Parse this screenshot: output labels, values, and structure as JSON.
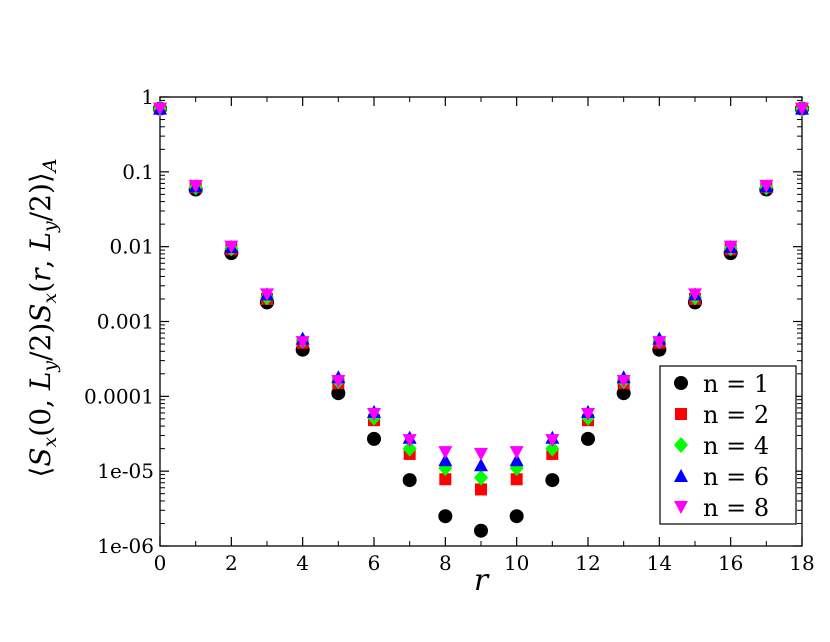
{
  "chart_data": {
    "type": "scatter",
    "title": "",
    "xlabel": "r",
    "ylabel": "⟨Sx(0,Ly/2)Sx(r,Ly/2)⟩A",
    "xlim": [
      0,
      18
    ],
    "ylim": [
      1e-06,
      1
    ],
    "yscale": "log",
    "x_ticks": [
      0,
      2,
      4,
      6,
      8,
      10,
      12,
      14,
      16,
      18
    ],
    "y_ticks": [
      {
        "value": 1,
        "label": "1"
      },
      {
        "value": 0.1,
        "label": "0.1"
      },
      {
        "value": 0.01,
        "label": "0.01"
      },
      {
        "value": 0.001,
        "label": "0.001"
      },
      {
        "value": 0.0001,
        "label": "0.0001"
      },
      {
        "value": 1e-05,
        "label": "1e-05"
      },
      {
        "value": 1e-06,
        "label": "1e-06"
      }
    ],
    "grid": false,
    "legend": {
      "position": "bottom-right"
    },
    "x": [
      0,
      1,
      2,
      3,
      4,
      5,
      6,
      7,
      8,
      9,
      10,
      11,
      12,
      13,
      14,
      15,
      16,
      17,
      18
    ],
    "series": [
      {
        "name": "n = 1",
        "marker": "circle",
        "color": "#000000",
        "values": [
          0.7,
          0.058,
          0.0082,
          0.0018,
          0.00042,
          0.00011,
          2.7e-05,
          7.6e-06,
          2.5e-06,
          1.6e-06,
          2.5e-06,
          7.6e-06,
          2.7e-05,
          0.00011,
          0.00042,
          0.0018,
          0.0082,
          0.058,
          0.7
        ]
      },
      {
        "name": "n = 2",
        "marker": "square",
        "color": "#ff0000",
        "values": [
          0.7,
          0.062,
          0.0092,
          0.002,
          0.00052,
          0.00015,
          4.8e-05,
          1.7e-05,
          7.8e-06,
          5.7e-06,
          7.8e-06,
          1.7e-05,
          4.8e-05,
          0.00015,
          0.00052,
          0.002,
          0.0092,
          0.062,
          0.7
        ]
      },
      {
        "name": "n = 4",
        "marker": "diamond",
        "color": "#00ff00",
        "values": [
          0.7,
          0.062,
          0.0095,
          0.0021,
          0.00055,
          0.00016,
          5.2e-05,
          2e-05,
          1.1e-05,
          8.2e-06,
          1.1e-05,
          2e-05,
          5.2e-05,
          0.00016,
          0.00055,
          0.0021,
          0.0095,
          0.062,
          0.7
        ]
      },
      {
        "name": "n = 6",
        "marker": "triangle-up",
        "color": "#0000ff",
        "values": [
          0.7,
          0.064,
          0.0099,
          0.0023,
          0.00059,
          0.00018,
          6.2e-05,
          2.8e-05,
          1.4e-05,
          1.2e-05,
          1.4e-05,
          2.8e-05,
          6.2e-05,
          0.00018,
          0.00059,
          0.0023,
          0.0099,
          0.064,
          0.7
        ]
      },
      {
        "name": "n = 8",
        "marker": "triangle-down",
        "color": "#ff00ff",
        "values": [
          0.7,
          0.065,
          0.01,
          0.0023,
          0.00053,
          0.00016,
          5.8e-05,
          2.6e-05,
          1.8e-05,
          1.7e-05,
          1.8e-05,
          2.6e-05,
          5.8e-05,
          0.00016,
          0.00053,
          0.0023,
          0.01,
          0.065,
          0.7
        ]
      }
    ]
  }
}
